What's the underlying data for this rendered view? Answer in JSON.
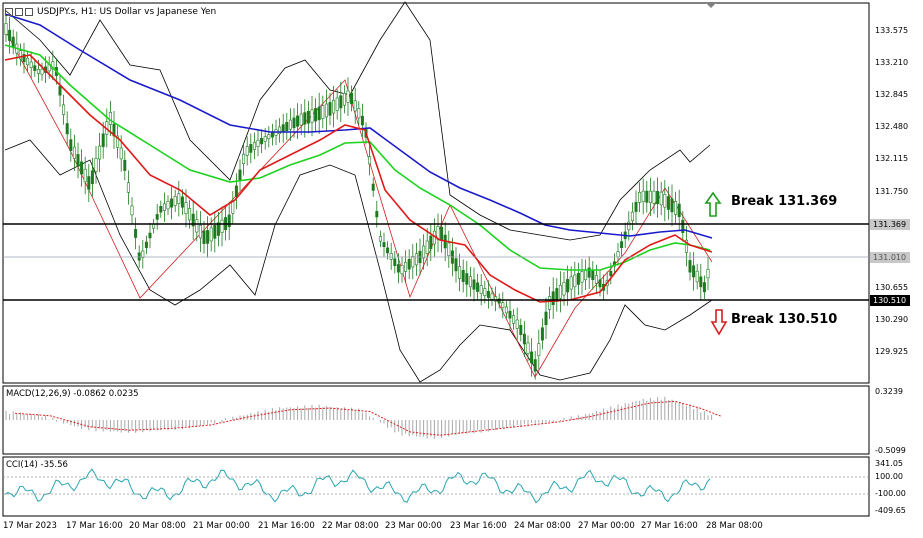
{
  "window": {
    "title": "USDJPY.s, H1:  US Dollar vs Japanese Yen"
  },
  "price_axis": {
    "labels": [
      "133.575",
      "133.210",
      "132.845",
      "132.480",
      "132.115",
      "131.750",
      "130.655",
      "130.290",
      "129.925"
    ],
    "badges": [
      {
        "text": "131.369",
        "bg": "#c8c8c8",
        "color": "#000000"
      },
      {
        "text": "131.010",
        "bg": "#c8c8c8",
        "color": "#555555"
      },
      {
        "text": "130.510",
        "bg": "#000000",
        "color": "#ffffff"
      }
    ]
  },
  "annotations": {
    "break_up": "Break 131.369",
    "break_down": "Break 130.510",
    "up_arrow_color": "#1e9e1e",
    "down_arrow_color": "#d42020"
  },
  "macd": {
    "label": "MACD(12,26,9) -0.0862 0.0235",
    "axis": [
      "0.3239",
      "-0.5099"
    ]
  },
  "cci": {
    "label": "CCI(14) -35.56",
    "axis": [
      "341.05",
      "100.00",
      "-100.00",
      "-409.65"
    ]
  },
  "time_axis": {
    "labels": [
      "17 Mar 2023",
      "17 Mar 16:00",
      "20 Mar 08:00",
      "21 Mar 00:00",
      "21 Mar 16:00",
      "22 Mar 08:00",
      "23 Mar 00:00",
      "23 Mar 16:00",
      "24 Mar 08:00",
      "27 Mar 00:00",
      "27 Mar 16:00",
      "28 Mar 08:00"
    ]
  },
  "colors": {
    "ma_fast": "#e01818",
    "ma_mid": "#1ed21e",
    "ma_slow": "#1a1acc",
    "zigzag": "#d02020",
    "candle": "#1e7a1e",
    "cci_line": "#2aa6b0",
    "macd_signal": "#e02020",
    "macd_hist": "#a8a8a8"
  }
}
